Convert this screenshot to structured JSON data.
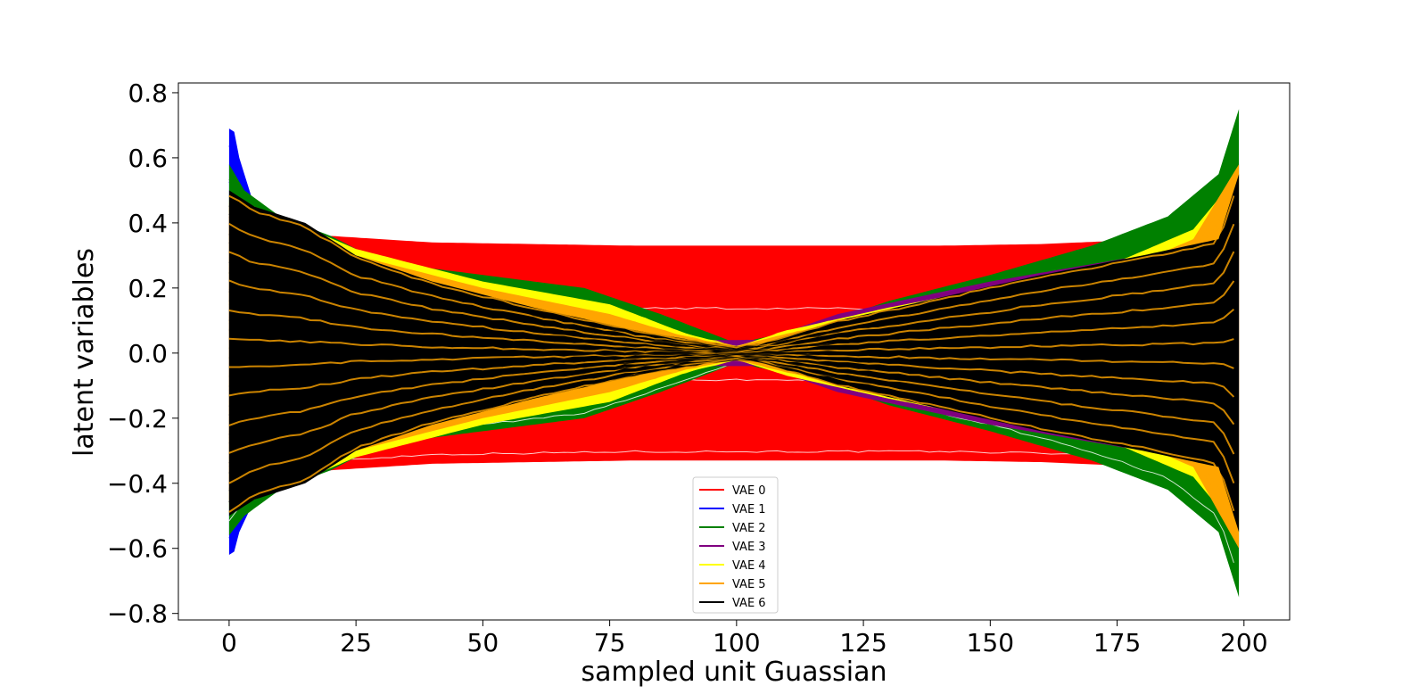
{
  "chart_data": {
    "type": "line",
    "title": "",
    "xlabel": "sampled unit Guassian",
    "ylabel": "latent variables",
    "xlim": [
      -10,
      209
    ],
    "ylim": [
      -0.82,
      0.83
    ],
    "xticks": [
      0,
      25,
      50,
      75,
      100,
      125,
      150,
      175,
      200
    ],
    "xtick_labels": [
      "0",
      "25",
      "50",
      "75",
      "100",
      "125",
      "150",
      "175",
      "200"
    ],
    "yticks": [
      0.8,
      0.6,
      0.4,
      0.2,
      0.0,
      -0.2,
      -0.4,
      -0.6,
      -0.8
    ],
    "ytick_labels": [
      "0.8",
      "0.6",
      "0.4",
      "0.2",
      "0.0",
      "−0.2",
      "−0.4",
      "−0.6",
      "−0.8"
    ],
    "grid": false,
    "legend_position": "lower-center",
    "series": [
      {
        "name": "VAE 0",
        "color": "#ff0000",
        "envelope_x": [
          0,
          10,
          20,
          40,
          60,
          80,
          100,
          120,
          140,
          160,
          175,
          190,
          199
        ],
        "envelope_top": [
          0.42,
          0.38,
          0.36,
          0.34,
          0.335,
          0.33,
          0.33,
          0.33,
          0.33,
          0.335,
          0.345,
          0.35,
          0.37
        ],
        "envelope_bottom": [
          -0.42,
          -0.38,
          -0.36,
          -0.34,
          -0.335,
          -0.33,
          -0.33,
          -0.33,
          -0.33,
          -0.335,
          -0.345,
          -0.35,
          -0.37
        ]
      },
      {
        "name": "VAE 1",
        "color": "#0000ff",
        "envelope_x": [
          0,
          1,
          2,
          5,
          10,
          20,
          30,
          50,
          80,
          100,
          120,
          150,
          180,
          199
        ],
        "envelope_top": [
          0.69,
          0.68,
          0.6,
          0.45,
          0.4,
          0.36,
          0.28,
          0.18,
          0.06,
          0.01,
          0.08,
          0.2,
          0.3,
          0.4
        ],
        "envelope_bottom": [
          -0.62,
          -0.61,
          -0.55,
          -0.45,
          -0.4,
          -0.36,
          -0.28,
          -0.18,
          -0.06,
          -0.01,
          -0.08,
          -0.2,
          -0.3,
          -0.4
        ]
      },
      {
        "name": "VAE 2",
        "color": "#008000",
        "envelope_x": [
          0,
          3,
          10,
          20,
          30,
          50,
          70,
          85,
          100,
          115,
          130,
          150,
          170,
          185,
          195,
          199
        ],
        "envelope_top": [
          0.58,
          0.5,
          0.42,
          0.36,
          0.28,
          0.24,
          0.2,
          0.12,
          0.03,
          0.08,
          0.16,
          0.24,
          0.33,
          0.42,
          0.55,
          0.75
        ],
        "envelope_bottom": [
          -0.56,
          -0.5,
          -0.42,
          -0.36,
          -0.28,
          -0.24,
          -0.2,
          -0.12,
          -0.03,
          -0.08,
          -0.16,
          -0.24,
          -0.33,
          -0.42,
          -0.55,
          -0.75
        ]
      },
      {
        "name": "VAE 3",
        "color": "#800080",
        "envelope_x": [
          0,
          20,
          50,
          80,
          95,
          105,
          120,
          150,
          180,
          199
        ],
        "envelope_top": [
          0.45,
          0.33,
          0.2,
          0.08,
          0.04,
          0.04,
          0.12,
          0.22,
          0.3,
          0.4
        ],
        "envelope_bottom": [
          -0.45,
          -0.33,
          -0.2,
          -0.08,
          -0.04,
          -0.04,
          -0.12,
          -0.22,
          -0.3,
          -0.4
        ]
      },
      {
        "name": "VAE 4",
        "color": "#ffff00",
        "envelope_x": [
          0,
          10,
          25,
          50,
          75,
          90,
          100,
          110,
          130,
          150,
          175,
          190,
          199
        ],
        "envelope_top": [
          0.48,
          0.42,
          0.32,
          0.22,
          0.15,
          0.06,
          0.02,
          0.07,
          0.14,
          0.2,
          0.28,
          0.38,
          0.55
        ],
        "envelope_bottom": [
          -0.48,
          -0.42,
          -0.32,
          -0.22,
          -0.15,
          -0.06,
          -0.02,
          -0.07,
          -0.14,
          -0.2,
          -0.28,
          -0.38,
          -0.55
        ]
      },
      {
        "name": "VAE 5",
        "color": "#ffa500",
        "envelope_x": [
          0,
          10,
          25,
          50,
          75,
          90,
          100,
          110,
          130,
          150,
          175,
          190,
          199
        ],
        "envelope_top": [
          0.46,
          0.4,
          0.3,
          0.2,
          0.12,
          0.05,
          0.02,
          0.06,
          0.12,
          0.18,
          0.25,
          0.35,
          0.58
        ],
        "envelope_bottom": [
          -0.46,
          -0.4,
          -0.3,
          -0.2,
          -0.12,
          -0.05,
          -0.02,
          -0.06,
          -0.12,
          -0.18,
          -0.25,
          -0.35,
          -0.6
        ]
      },
      {
        "name": "VAE 6",
        "color": "#000000",
        "envelope_x": [
          0,
          5,
          15,
          25,
          40,
          60,
          80,
          95,
          100,
          105,
          120,
          140,
          160,
          180,
          195,
          199
        ],
        "envelope_top": [
          0.5,
          0.45,
          0.4,
          0.3,
          0.22,
          0.14,
          0.07,
          0.03,
          0.02,
          0.03,
          0.1,
          0.17,
          0.24,
          0.3,
          0.35,
          0.55
        ],
        "envelope_bottom": [
          -0.5,
          -0.45,
          -0.4,
          -0.3,
          -0.22,
          -0.14,
          -0.07,
          -0.03,
          -0.02,
          -0.03,
          -0.1,
          -0.17,
          -0.24,
          -0.3,
          -0.35,
          -0.55
        ]
      }
    ]
  }
}
